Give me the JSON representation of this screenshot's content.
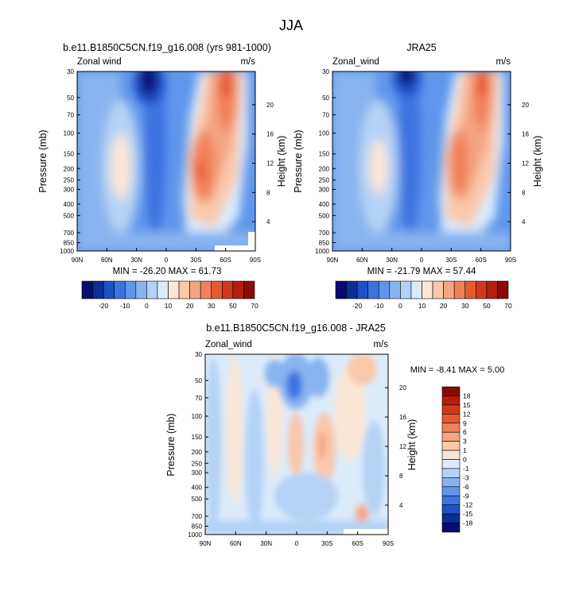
{
  "page": {
    "title": "JJA"
  },
  "panels": [
    {
      "title": "b.e11.B1850C5CN.f19_g16.008 (yrs 981-1000)",
      "variable": "Zonal wind",
      "units": "m/s",
      "ylabel": "Pressure (mb)",
      "ylabel_right": "Height (km)",
      "stats": "MIN = -26.20  MAX =  61.73",
      "min": -26.2,
      "max": 61.73
    },
    {
      "title": "JRA25",
      "variable": "Zonal_wind",
      "units": "m/s",
      "ylabel": "Pressure (mb)",
      "ylabel_right": "Height (km)",
      "stats": "MIN = -21.79  MAX =  57.44",
      "min": -21.79,
      "max": 57.44
    },
    {
      "title": "b.e11.B1850C5CN.f19_g16.008 - JRA25",
      "variable": "Zonal_wind",
      "units": "m/s",
      "ylabel": "Pressure (mb)",
      "ylabel_right": "Height (km)",
      "stats": "MIN =  -8.41  MAX =   5.00",
      "min": -8.41,
      "max": 5.0
    }
  ],
  "chart_data": [
    {
      "type": "heatmap",
      "title": "b.e11.B1850C5CN.f19_g16.008 (yrs 981-1000)",
      "x_tick_labels": [
        "90N",
        "60N",
        "30N",
        "0",
        "30S",
        "60S",
        "90S"
      ],
      "x_ticks_deg": [
        90,
        60,
        30,
        0,
        -30,
        -60,
        -90
      ],
      "y_tick_labels": [
        "30",
        "50",
        "70",
        "100",
        "150",
        "200",
        "250",
        "300",
        "400",
        "500",
        "700",
        "850",
        "1000"
      ],
      "y_ticks_mb": [
        30,
        50,
        70,
        100,
        150,
        200,
        250,
        300,
        400,
        500,
        700,
        850,
        1000
      ],
      "y_right_tick_labels": [
        "20",
        "16",
        "12",
        "8",
        "4"
      ],
      "y_right_ticks_km": [
        20,
        16,
        12,
        8,
        4
      ],
      "ylim_mb": [
        1000,
        30
      ],
      "xlim_deg": [
        90,
        -90
      ],
      "colorbar": {
        "labels": [
          "-20",
          "-10",
          "0",
          "10",
          "20",
          "30",
          "50",
          "70"
        ],
        "colors": [
          "#0a0a73",
          "#0a2d9c",
          "#1e50c8",
          "#3c73e1",
          "#5f96eb",
          "#87b4f0",
          "#b4d2f5",
          "#dcebfa",
          "#fae6d7",
          "#fac8aa",
          "#f5a582",
          "#f0825a",
          "#e65a32",
          "#d2371e",
          "#b41e0f",
          "#8c0a05"
        ]
      }
    },
    {
      "type": "heatmap",
      "title": "JRA25",
      "x_tick_labels": [
        "90N",
        "60N",
        "30N",
        "0",
        "30S",
        "60S",
        "90S"
      ],
      "x_ticks_deg": [
        90,
        60,
        30,
        0,
        -30,
        -60,
        -90
      ],
      "y_tick_labels": [
        "30",
        "50",
        "70",
        "100",
        "150",
        "200",
        "250",
        "300",
        "400",
        "500",
        "700",
        "850",
        "1000"
      ],
      "y_ticks_mb": [
        30,
        50,
        70,
        100,
        150,
        200,
        250,
        300,
        400,
        500,
        700,
        850,
        1000
      ],
      "y_right_tick_labels": [
        "20",
        "16",
        "12",
        "8",
        "4"
      ],
      "y_right_ticks_km": [
        20,
        16,
        12,
        8,
        4
      ],
      "ylim_mb": [
        1000,
        30
      ],
      "xlim_deg": [
        90,
        -90
      ],
      "colorbar": {
        "labels": [
          "-20",
          "-10",
          "0",
          "10",
          "20",
          "30",
          "50",
          "70"
        ],
        "colors": [
          "#0a0a73",
          "#0a2d9c",
          "#1e50c8",
          "#3c73e1",
          "#5f96eb",
          "#87b4f0",
          "#b4d2f5",
          "#dcebfa",
          "#fae6d7",
          "#fac8aa",
          "#f5a582",
          "#f0825a",
          "#e65a32",
          "#d2371e",
          "#b41e0f",
          "#8c0a05"
        ]
      }
    },
    {
      "type": "heatmap",
      "title": "b.e11.B1850C5CN.f19_g16.008 - JRA25",
      "x_tick_labels": [
        "90N",
        "60N",
        "30N",
        "0",
        "30S",
        "60S",
        "90S"
      ],
      "x_ticks_deg": [
        90,
        60,
        30,
        0,
        -30,
        -60,
        -90
      ],
      "y_tick_labels": [
        "30",
        "50",
        "70",
        "100",
        "150",
        "200",
        "250",
        "300",
        "400",
        "500",
        "700",
        "850",
        "1000"
      ],
      "y_ticks_mb": [
        30,
        50,
        70,
        100,
        150,
        200,
        250,
        300,
        400,
        500,
        700,
        850,
        1000
      ],
      "y_right_tick_labels": [
        "20",
        "16",
        "12",
        "8",
        "4"
      ],
      "y_right_ticks_km": [
        20,
        16,
        12,
        8,
        4
      ],
      "ylim_mb": [
        1000,
        30
      ],
      "xlim_deg": [
        90,
        -90
      ],
      "colorbar": {
        "labels": [
          "18",
          "15",
          "12",
          "9",
          "6",
          "3",
          "1",
          "0",
          "-1",
          "-3",
          "-6",
          "-9",
          "-12",
          "-15",
          "-18"
        ],
        "colors": [
          "#8c0a05",
          "#b41e0f",
          "#d2371e",
          "#e65a32",
          "#f0825a",
          "#f5a582",
          "#fac8aa",
          "#fae6d7",
          "#dcebfa",
          "#b4d2f5",
          "#87b4f0",
          "#5f96eb",
          "#3c73e1",
          "#1e50c8",
          "#0a2d9c",
          "#0a0a73"
        ]
      }
    }
  ]
}
